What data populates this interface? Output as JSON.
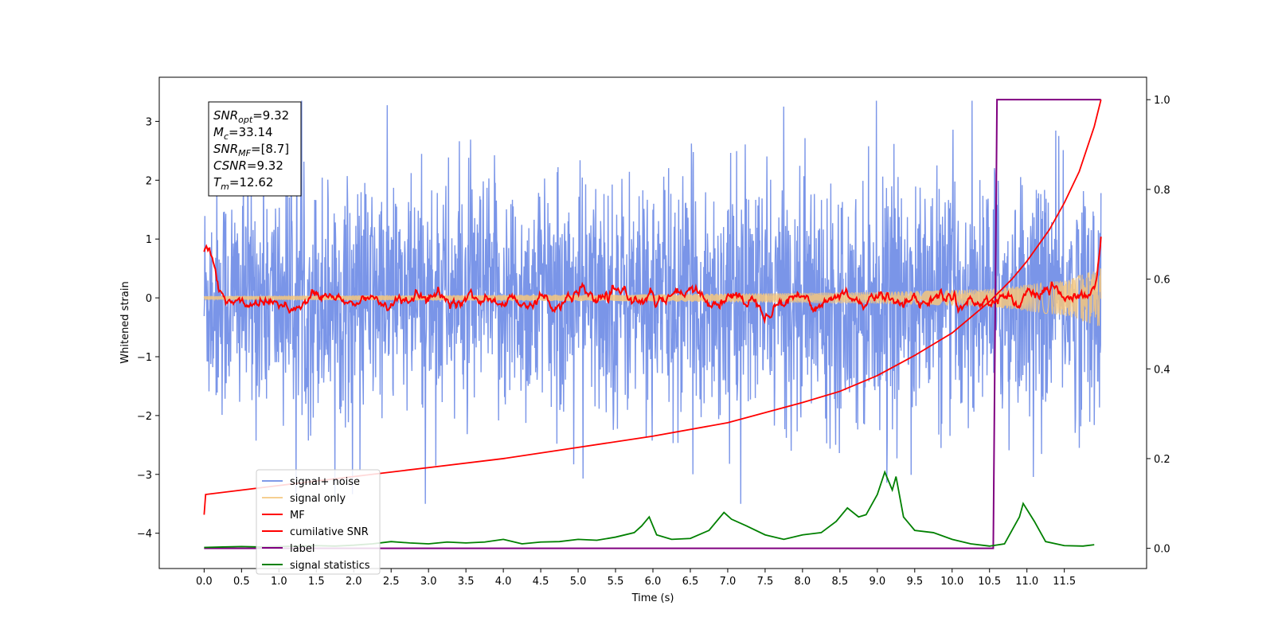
{
  "chart_data": {
    "type": "line",
    "xlabel": "Time (s)",
    "ylabel": "Whitened strain",
    "xlim": [
      -0.6,
      12.6
    ],
    "ylim": [
      -4.6,
      3.75
    ],
    "y2lim": [
      -0.045,
      1.05
    ],
    "xticks": [
      0.0,
      0.5,
      1.0,
      1.5,
      2.0,
      2.5,
      3.0,
      3.5,
      4.0,
      4.5,
      5.0,
      5.5,
      6.0,
      6.5,
      7.0,
      7.5,
      8.0,
      8.5,
      9.0,
      9.5,
      10.0,
      10.5,
      11.0,
      11.5
    ],
    "xtick_labels": [
      "0.0",
      "0.5",
      "1.0",
      "1.5",
      "2.0",
      "2.5",
      "3.0",
      "3.5",
      "4.0",
      "4.5",
      "5.0",
      "5.5",
      "6.0",
      "6.5",
      "7.0",
      "7.5",
      "8.0",
      "8.5",
      "9.0",
      "9.5",
      "10.0",
      "10.5",
      "11.0",
      "11.5"
    ],
    "yticks": [
      -4,
      -3,
      -2,
      -1,
      0,
      1,
      2,
      3
    ],
    "ytick_labels": [
      "−4",
      "−3",
      "−2",
      "−1",
      "0",
      "1",
      "2",
      "3"
    ],
    "y2ticks": [
      0.0,
      0.2,
      0.4,
      0.6,
      0.8,
      1.0
    ],
    "y2tick_labels": [
      "0.0",
      "0.2",
      "0.4",
      "0.6",
      "0.8",
      "1.0"
    ],
    "grid": false,
    "legend_position": "lower-left",
    "series": [
      {
        "name": "signal+ noise",
        "axis": "left",
        "color": "#6b8ae6",
        "kind": "noise band",
        "x_range": [
          0.0,
          11.99
        ],
        "amplitude_sigma": 1.0,
        "peak_range": [
          -3.5,
          3.35
        ]
      },
      {
        "name": "signal only",
        "axis": "left",
        "color": "#f5c77e",
        "kind": "chirp",
        "x_range": [
          0.0,
          11.99
        ],
        "amplitude": [
          [
            0.0,
            0.03
          ],
          [
            6.0,
            0.06
          ],
          [
            9.0,
            0.1
          ],
          [
            10.5,
            0.15
          ],
          [
            11.5,
            0.3
          ],
          [
            11.99,
            0.5
          ]
        ]
      },
      {
        "name": "MF",
        "axis": "left",
        "color": "#ff0000",
        "kind": "matched filter",
        "x_range": [
          0.0,
          11.99
        ],
        "level": [
          [
            0.0,
            0.8
          ],
          [
            0.03,
            0.92
          ],
          [
            0.1,
            0.65
          ],
          [
            0.2,
            0.1
          ],
          [
            0.35,
            -0.05
          ],
          [
            11.9,
            0.0
          ],
          [
            11.99,
            0.95
          ]
        ]
      },
      {
        "name": "cumilative SNR",
        "axis": "right",
        "color": "#ff0000",
        "kind": "cumulative",
        "x": [
          0.0,
          0.02,
          1.0,
          2.0,
          3.0,
          4.0,
          5.0,
          6.0,
          7.0,
          8.0,
          8.5,
          9.0,
          9.5,
          10.0,
          10.5,
          10.8,
          11.0,
          11.3,
          11.5,
          11.7,
          11.9,
          11.99
        ],
        "y": [
          0.075,
          0.12,
          0.14,
          0.16,
          0.18,
          0.2,
          0.225,
          0.25,
          0.28,
          0.325,
          0.35,
          0.385,
          0.43,
          0.48,
          0.55,
          0.6,
          0.64,
          0.71,
          0.77,
          0.84,
          0.94,
          1.0
        ]
      },
      {
        "name": "label",
        "axis": "right",
        "color": "#800080",
        "kind": "step",
        "x": [
          0.0,
          10.55,
          10.6,
          11.99
        ],
        "y": [
          0.0,
          0.0,
          1.0,
          1.0
        ]
      },
      {
        "name": "signal statistics",
        "axis": "right",
        "color": "#008000",
        "kind": "line",
        "x": [
          0.0,
          0.25,
          0.5,
          0.75,
          1.0,
          1.25,
          1.5,
          1.75,
          2.0,
          2.25,
          2.5,
          2.75,
          3.0,
          3.25,
          3.5,
          3.75,
          4.0,
          4.25,
          4.5,
          4.75,
          5.0,
          5.25,
          5.5,
          5.75,
          5.85,
          5.95,
          6.05,
          6.25,
          6.5,
          6.75,
          6.95,
          7.05,
          7.25,
          7.5,
          7.75,
          8.0,
          8.25,
          8.45,
          8.6,
          8.75,
          8.85,
          9.0,
          9.1,
          9.2,
          9.25,
          9.35,
          9.5,
          9.75,
          10.0,
          10.25,
          10.5,
          10.7,
          10.8,
          10.9,
          10.95,
          11.1,
          11.25,
          11.5,
          11.75,
          11.9
        ],
        "y": [
          0.002,
          0.003,
          0.004,
          0.003,
          0.004,
          0.005,
          0.006,
          0.005,
          0.007,
          0.01,
          0.015,
          0.012,
          0.01,
          0.014,
          0.012,
          0.014,
          0.02,
          0.01,
          0.014,
          0.015,
          0.02,
          0.018,
          0.025,
          0.035,
          0.05,
          0.07,
          0.03,
          0.02,
          0.022,
          0.04,
          0.08,
          0.065,
          0.05,
          0.03,
          0.02,
          0.03,
          0.035,
          0.06,
          0.09,
          0.07,
          0.075,
          0.12,
          0.17,
          0.13,
          0.16,
          0.07,
          0.04,
          0.035,
          0.02,
          0.01,
          0.005,
          0.01,
          0.04,
          0.07,
          0.1,
          0.06,
          0.015,
          0.006,
          0.005,
          0.008
        ]
      }
    ]
  },
  "annotation": [
    {
      "sym": "SNR",
      "sub": "opt",
      "val": "=9.32"
    },
    {
      "sym": "M",
      "sub": "c",
      "val": "=33.14"
    },
    {
      "sym": "SNR",
      "sub": "MF",
      "val": "=[8.7]"
    },
    {
      "sym": "CSNR",
      "sub": "",
      "val": "=9.32"
    },
    {
      "sym": "T",
      "sub": "m",
      "val": "=12.62"
    }
  ]
}
